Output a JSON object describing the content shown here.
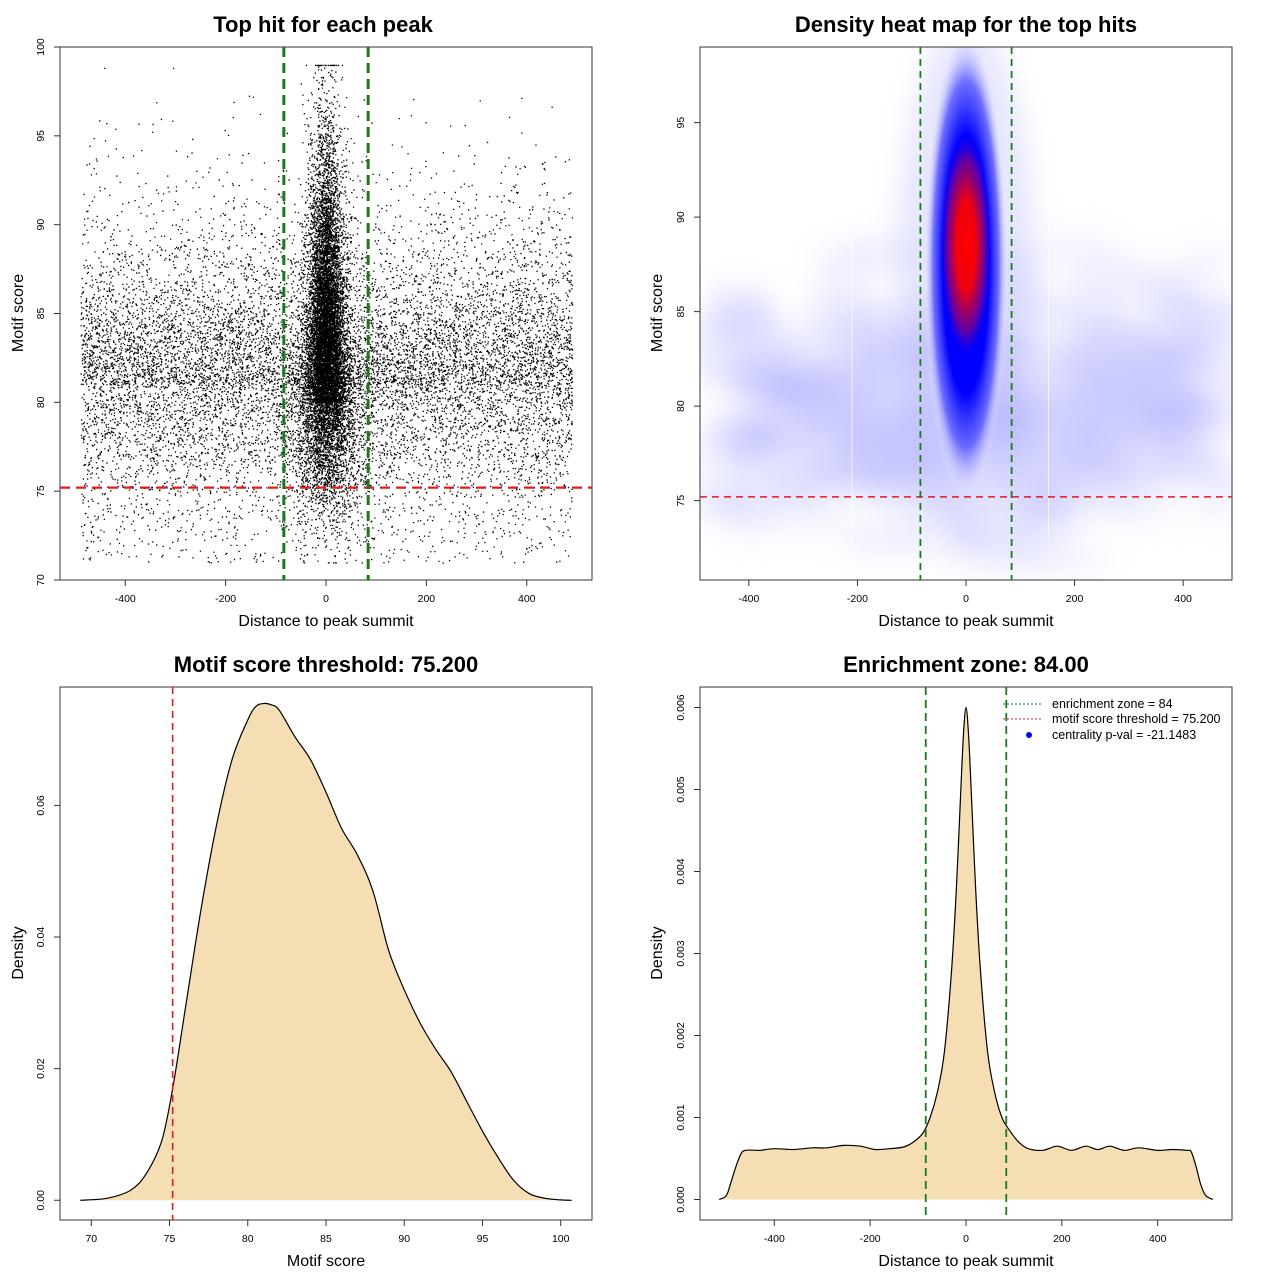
{
  "colors": {
    "threshold": "#e01b1b",
    "zone": "#1a7a1a",
    "density_fill": "#f5deb3",
    "heat_low": "#b7b7ff",
    "heat_mid": "#0000ff",
    "heat_high": "#ff0000",
    "legend_dot": "#0000ff"
  },
  "chart_data": [
    {
      "id": "scatter",
      "type": "scatter",
      "title": "Top hit for each peak",
      "xlabel": "Distance to peak summit",
      "ylabel": "Motif score",
      "xlim": [
        -530,
        530
      ],
      "ylim": [
        70,
        100
      ],
      "xticks": [
        -400,
        -200,
        0,
        200,
        400
      ],
      "yticks": [
        70,
        75,
        80,
        85,
        90,
        95,
        100
      ],
      "threshold_y": 75.2,
      "zone_x": [
        -84,
        84
      ],
      "point_model": {
        "x_range": [
          -490,
          490
        ],
        "background_points": 12000,
        "central_points": 11000,
        "central_sd": 18,
        "score_peak": 81,
        "score_min": 71,
        "score_max": 99
      }
    },
    {
      "id": "heatmap",
      "type": "heatmap",
      "title": "Density heat map for the top hits",
      "xlabel": "Distance to peak summit",
      "ylabel": "Motif score",
      "xlim": [
        -490,
        490
      ],
      "ylim": [
        70.8,
        99
      ],
      "xticks": [
        -400,
        -200,
        0,
        200,
        400
      ],
      "yticks": [
        75,
        80,
        85,
        90,
        95
      ],
      "threshold_y": 75.2,
      "zone_x": [
        -84,
        84
      ],
      "hotspot": {
        "x": 0,
        "y": 88.5
      }
    },
    {
      "id": "score-density",
      "type": "area",
      "title": "Motif score threshold: 75.200",
      "xlabel": "Motif score",
      "ylabel": "Density",
      "xlim": [
        68,
        102
      ],
      "ylim": [
        -0.003,
        0.078
      ],
      "xticks": [
        70,
        75,
        80,
        85,
        90,
        95,
        100
      ],
      "yticks": [
        0.0,
        0.02,
        0.04,
        0.06
      ],
      "ytick_labels": [
        "0.00",
        "0.02",
        "0.04",
        "0.06"
      ],
      "threshold_x": 75.2,
      "x": [
        69.3,
        71,
        72.5,
        73.5,
        74.5,
        75.2,
        76,
        77,
        78,
        79,
        80,
        80.5,
        81,
        81.5,
        82,
        83,
        84,
        85,
        86,
        87,
        88,
        89,
        90,
        91,
        92,
        93,
        94,
        95,
        96,
        97,
        98,
        99,
        100,
        100.7
      ],
      "y": [
        0.0,
        0.0003,
        0.0015,
        0.004,
        0.009,
        0.017,
        0.029,
        0.044,
        0.057,
        0.067,
        0.073,
        0.075,
        0.0755,
        0.0753,
        0.0745,
        0.0705,
        0.067,
        0.062,
        0.0565,
        0.0525,
        0.047,
        0.038,
        0.032,
        0.027,
        0.023,
        0.0195,
        0.015,
        0.0105,
        0.0065,
        0.003,
        0.001,
        0.0003,
        5e-05,
        0.0
      ]
    },
    {
      "id": "distance-density",
      "type": "area",
      "title": "Enrichment zone: 84.00",
      "xlabel": "Distance to peak summit",
      "ylabel": "Density",
      "xlim": [
        -555,
        555
      ],
      "ylim": [
        -0.00025,
        0.00625
      ],
      "xticks": [
        -400,
        -200,
        0,
        200,
        400
      ],
      "yticks": [
        0.0,
        0.001,
        0.002,
        0.003,
        0.004,
        0.005,
        0.006
      ],
      "ytick_labels": [
        "0.000",
        "0.001",
        "0.002",
        "0.003",
        "0.004",
        "0.005",
        "0.006"
      ],
      "zone_x": [
        -84,
        84
      ],
      "x": [
        -515,
        -500,
        -490,
        -480,
        -470,
        -460,
        -430,
        -400,
        -360,
        -320,
        -290,
        -255,
        -220,
        -190,
        -160,
        -130,
        -110,
        -90,
        -75,
        -60,
        -45,
        -30,
        -20,
        -10,
        -5,
        0,
        5,
        10,
        20,
        30,
        45,
        60,
        75,
        90,
        110,
        130,
        160,
        190,
        220,
        250,
        275,
        300,
        330,
        360,
        400,
        430,
        460,
        470,
        480,
        490,
        500,
        515
      ],
      "y": [
        0.0,
        5e-05,
        0.00022,
        0.0004,
        0.00055,
        0.0006,
        0.0006,
        0.00062,
        0.00061,
        0.00063,
        0.00063,
        0.00066,
        0.00065,
        0.00061,
        0.00062,
        0.00064,
        0.0007,
        0.00081,
        0.001,
        0.0013,
        0.0018,
        0.0028,
        0.0038,
        0.0051,
        0.0057,
        0.006,
        0.0057,
        0.0051,
        0.0038,
        0.0028,
        0.0018,
        0.0013,
        0.001,
        0.00085,
        0.0007,
        0.00062,
        0.0006,
        0.00065,
        0.0006,
        0.00065,
        0.00061,
        0.00065,
        0.0006,
        0.00063,
        0.0006,
        0.00061,
        0.0006,
        0.00058,
        0.0004,
        0.00018,
        5e-05,
        0.0
      ],
      "legend": [
        {
          "label": "enrichment zone = 84",
          "style": "zone"
        },
        {
          "label": "motif score threshold = 75.200",
          "style": "threshold"
        },
        {
          "label": "centrality p-val = -21.1483",
          "style": "dot"
        }
      ]
    }
  ]
}
